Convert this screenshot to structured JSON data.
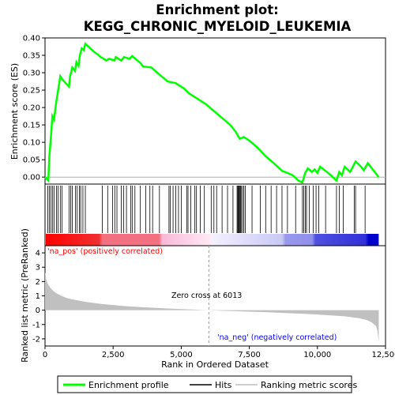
{
  "chart_data": {
    "type": "line",
    "title_line1": "Enrichment plot:",
    "title_line2": "KEGG_CHRONIC_MYELOID_LEUKEMIA",
    "top_panel": {
      "ylabel": "Enrichment score (ES)",
      "ylim": [
        -0.02,
        0.4
      ],
      "yticks": [
        "0.00",
        "0.05",
        "0.10",
        "0.15",
        "0.20",
        "0.25",
        "0.30",
        "0.35",
        "0.40"
      ],
      "ytick_values": [
        0,
        0.05,
        0.1,
        0.15,
        0.2,
        0.25,
        0.3,
        0.35,
        0.4
      ],
      "line_color": "#00ff00",
      "es_profile": [
        [
          0,
          0.0
        ],
        [
          120,
          -0.01
        ],
        [
          160,
          0.06
        ],
        [
          220,
          0.12
        ],
        [
          270,
          0.175
        ],
        [
          330,
          0.165
        ],
        [
          400,
          0.21
        ],
        [
          480,
          0.25
        ],
        [
          560,
          0.29
        ],
        [
          640,
          0.28
        ],
        [
          880,
          0.26
        ],
        [
          920,
          0.29
        ],
        [
          1000,
          0.315
        ],
        [
          1100,
          0.305
        ],
        [
          1150,
          0.33
        ],
        [
          1230,
          0.32
        ],
        [
          1280,
          0.35
        ],
        [
          1350,
          0.37
        ],
        [
          1420,
          0.365
        ],
        [
          1480,
          0.383
        ],
        [
          1800,
          0.36
        ],
        [
          2050,
          0.345
        ],
        [
          2250,
          0.335
        ],
        [
          2350,
          0.34
        ],
        [
          2550,
          0.335
        ],
        [
          2600,
          0.345
        ],
        [
          2800,
          0.335
        ],
        [
          2900,
          0.345
        ],
        [
          3100,
          0.34
        ],
        [
          3200,
          0.348
        ],
        [
          3500,
          0.328
        ],
        [
          3600,
          0.318
        ],
        [
          3900,
          0.315
        ],
        [
          4200,
          0.295
        ],
        [
          4500,
          0.275
        ],
        [
          4800,
          0.27
        ],
        [
          5100,
          0.255
        ],
        [
          5300,
          0.24
        ],
        [
          5600,
          0.225
        ],
        [
          5900,
          0.21
        ],
        [
          6200,
          0.19
        ],
        [
          6500,
          0.17
        ],
        [
          6800,
          0.15
        ],
        [
          7000,
          0.13
        ],
        [
          7150,
          0.11
        ],
        [
          7300,
          0.115
        ],
        [
          7500,
          0.105
        ],
        [
          7800,
          0.085
        ],
        [
          8100,
          0.06
        ],
        [
          8400,
          0.04
        ],
        [
          8700,
          0.018
        ],
        [
          8900,
          0.012
        ],
        [
          9100,
          0.005
        ],
        [
          9300,
          -0.01
        ],
        [
          9450,
          -0.015
        ],
        [
          9550,
          0.012
        ],
        [
          9650,
          0.025
        ],
        [
          9800,
          0.015
        ],
        [
          9900,
          0.022
        ],
        [
          10000,
          0.012
        ],
        [
          10100,
          0.03
        ],
        [
          10300,
          0.018
        ],
        [
          10500,
          0.005
        ],
        [
          10700,
          -0.01
        ],
        [
          10800,
          0.015
        ],
        [
          10900,
          0.005
        ],
        [
          11000,
          0.03
        ],
        [
          11200,
          0.015
        ],
        [
          11400,
          0.045
        ],
        [
          11600,
          0.03
        ],
        [
          11700,
          0.02
        ],
        [
          11850,
          0.04
        ],
        [
          12000,
          0.025
        ],
        [
          12250,
          0.0
        ]
      ]
    },
    "hits_panel": {
      "hit_positions": [
        100,
        160,
        220,
        280,
        330,
        420,
        480,
        560,
        620,
        880,
        940,
        1000,
        1120,
        1180,
        1260,
        1310,
        1390,
        1480,
        2100,
        2300,
        2480,
        2560,
        2640,
        2800,
        2890,
        2990,
        3150,
        3200,
        3300,
        3500,
        3700,
        3850,
        3950,
        4200,
        4550,
        4600,
        4700,
        4800,
        4900,
        5000,
        5200,
        5250,
        5350,
        5500,
        5560,
        5700,
        5850,
        6100,
        6200,
        6300,
        6500,
        6700,
        6900,
        7050,
        7080,
        7100,
        7130,
        7150,
        7180,
        7200,
        7250,
        7300,
        7350,
        7600,
        7900,
        8100,
        8300,
        8500,
        8700,
        8900,
        9200,
        9450,
        9500,
        9560,
        9600,
        9700,
        9850,
        9950,
        10050,
        10300,
        10700,
        10800,
        10950,
        11350,
        11400,
        11750
      ],
      "gradient_colors": [
        "#ff0000",
        "#ffc0c8",
        "#ffffff",
        "#c0c0ff",
        "#0000ff"
      ]
    },
    "bottom_panel": {
      "ylabel": "Ranked list metric (PreRanked)",
      "ylim": [
        -2.5,
        4.5
      ],
      "yticks": [
        "-2",
        "-1",
        "0",
        "1",
        "2",
        "3",
        "4"
      ],
      "ytick_values": [
        -2,
        -1,
        0,
        1,
        2,
        3,
        4
      ],
      "metric_curve": [
        [
          0,
          2.7
        ],
        [
          50,
          2.1
        ],
        [
          100,
          1.85
        ],
        [
          200,
          1.55
        ],
        [
          300,
          1.35
        ],
        [
          400,
          1.2
        ],
        [
          600,
          1.0
        ],
        [
          800,
          0.85
        ],
        [
          1000,
          0.75
        ],
        [
          1500,
          0.58
        ],
        [
          2000,
          0.45
        ],
        [
          2500,
          0.36
        ],
        [
          3000,
          0.28
        ],
        [
          3500,
          0.22
        ],
        [
          4000,
          0.17
        ],
        [
          4500,
          0.12
        ],
        [
          5000,
          0.08
        ],
        [
          5500,
          0.04
        ],
        [
          6013,
          0.0
        ],
        [
          6500,
          -0.04
        ],
        [
          7000,
          -0.07
        ],
        [
          7500,
          -0.1
        ],
        [
          8000,
          -0.13
        ],
        [
          8500,
          -0.17
        ],
        [
          9000,
          -0.21
        ],
        [
          9500,
          -0.25
        ],
        [
          10000,
          -0.3
        ],
        [
          10500,
          -0.36
        ],
        [
          11000,
          -0.43
        ],
        [
          11500,
          -0.55
        ],
        [
          11800,
          -0.68
        ],
        [
          12000,
          -0.85
        ],
        [
          12150,
          -1.1
        ],
        [
          12200,
          -1.4
        ],
        [
          12250,
          -2.2
        ]
      ],
      "zero_cross": 6013,
      "zero_cross_label": "Zero cross at 6013",
      "pos_label": "'na_pos' (positively correlated)",
      "neg_label": "'na_neg' (negatively correlated)",
      "pos_color": "#ff0000",
      "neg_color": "#0000ff"
    },
    "xlabel": "Rank in Ordered Dataset",
    "xlim": [
      0,
      12500
    ],
    "xticks": [
      "0",
      "2,500",
      "5,000",
      "7,500",
      "10,000",
      "12,500"
    ],
    "xtick_values": [
      0,
      2500,
      5000,
      7500,
      10000,
      12500
    ],
    "n_genes": 12250,
    "legend": {
      "items": [
        {
          "label": "Enrichment profile",
          "color": "#00ff00",
          "kind": "line"
        },
        {
          "label": "Hits",
          "color": "#000000",
          "kind": "line"
        },
        {
          "label": "Ranking metric scores",
          "color": "#c0c0c0",
          "kind": "line"
        }
      ]
    }
  }
}
